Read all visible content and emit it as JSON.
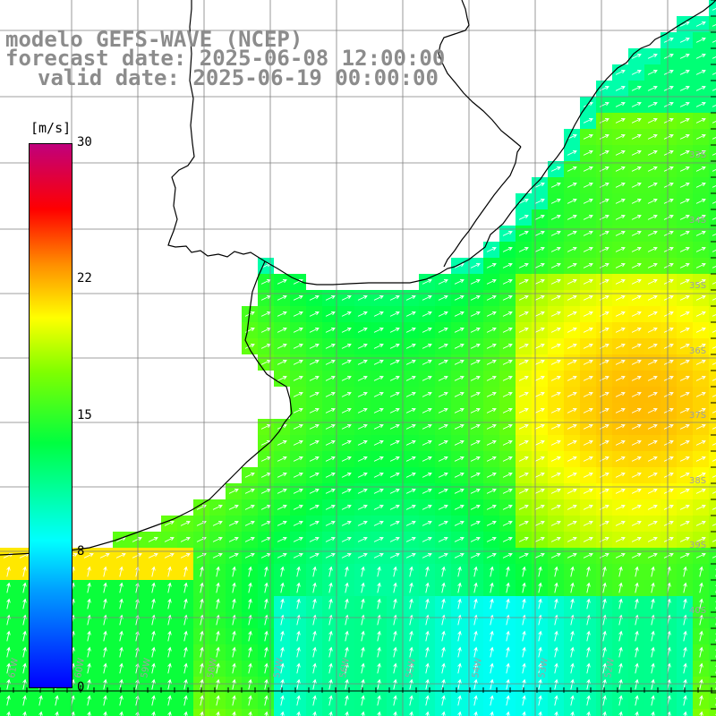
{
  "header": {
    "model": "modelo GEFS-WAVE (NCEP)",
    "forecast": "forecast date: 2025-06-08 12:00:00",
    "valid": "valid date: 2025-06-19 00:00:00"
  },
  "colorbar": {
    "unit": "[m/s]",
    "ticks": [
      "30",
      "22",
      "15",
      "8",
      "0"
    ],
    "colors": [
      "#0000ff",
      "#00a0ff",
      "#00ffff",
      "#00ff40",
      "#7fff00",
      "#ffff00",
      "#ff8c00",
      "#ff0000",
      "#c0007c"
    ]
  },
  "map": {
    "field": "wind speed",
    "lat_labels": [
      "33S",
      "34S",
      "35S",
      "36S",
      "37S",
      "38S",
      "39S",
      "40S"
    ],
    "lon_labels": [
      "61W",
      "60W",
      "59W",
      "58W",
      "57W",
      "56W",
      "55W",
      "54W",
      "53W",
      "52W"
    ],
    "land_color": "#ffffff",
    "grid_color": "#7f7f7f",
    "coast_color": "#000000",
    "arrow_color": "#ffffff"
  }
}
